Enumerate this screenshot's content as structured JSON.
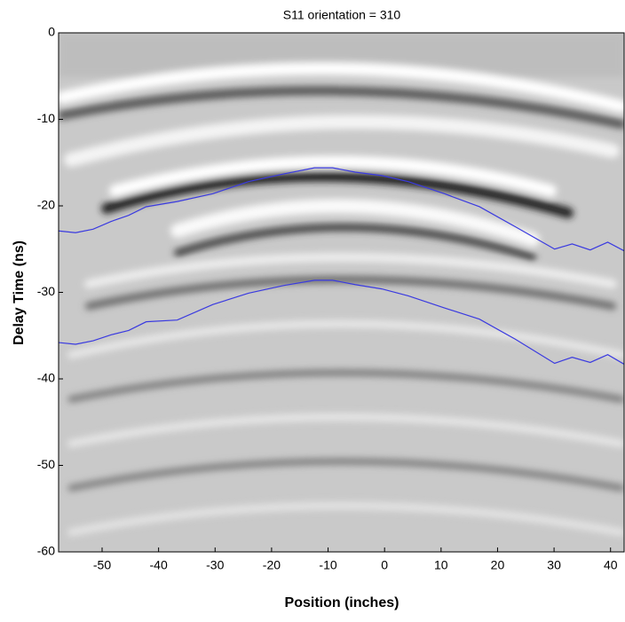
{
  "chart_data": {
    "type": "line",
    "title": "S11  orientation = 310",
    "x_label": "Position (inches)",
    "y_label": "Delay Time (ns)",
    "xlim": [
      -57.7,
      42.4
    ],
    "ylim": [
      -60,
      0
    ],
    "xticks": [
      -50,
      -40,
      -30,
      -20,
      -10,
      0,
      10,
      20,
      30,
      40
    ],
    "yticks": [
      0,
      -10,
      -20,
      -30,
      -40,
      -50,
      -60
    ],
    "x": [
      -57.7,
      -54.7,
      -51.6,
      -48.4,
      -45.3,
      -42.2,
      -36.7,
      -30.4,
      -24.1,
      -17.8,
      -12.4,
      -9.2,
      -5.2,
      -0.5,
      4.2,
      10.6,
      16.8,
      23.1,
      30.1,
      33.2,
      36.4,
      39.5,
      42.4
    ],
    "series": [
      {
        "color": "#3a3ae0",
        "values": [
          -22.9,
          -23.1,
          -22.7,
          -21.8,
          -21.1,
          -20.1,
          -19.5,
          -18.6,
          -17.2,
          -16.3,
          -15.6,
          -15.6,
          -16.1,
          -16.5,
          -17.2,
          -18.6,
          -20.1,
          -22.4,
          -25.0,
          -24.4,
          -25.1,
          -24.2,
          -25.2
        ]
      },
      {
        "color": "#3a3ae0",
        "values": [
          -35.8,
          -36.0,
          -35.6,
          -34.9,
          -34.4,
          -33.4,
          -33.2,
          -31.4,
          -30.1,
          -29.2,
          -28.6,
          -28.6,
          -29.1,
          -29.6,
          -30.4,
          -31.8,
          -33.1,
          -35.4,
          -38.2,
          -37.5,
          -38.1,
          -37.2,
          -38.3
        ]
      }
    ]
  }
}
